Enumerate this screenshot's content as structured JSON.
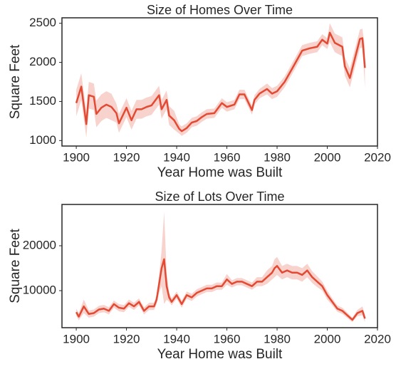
{
  "chart_data": [
    {
      "type": "line",
      "title": "Size of Homes Over Time",
      "xlabel": "Year Home was Built",
      "ylabel": "Square Feet",
      "x": [
        1900,
        1902,
        1904,
        1905,
        1907,
        1908,
        1910,
        1912,
        1914,
        1916,
        1917,
        1920,
        1922,
        1924,
        1926,
        1928,
        1930,
        1933,
        1934,
        1936,
        1937,
        1939,
        1941,
        1942,
        1944,
        1946,
        1948,
        1950,
        1952,
        1955,
        1958,
        1960,
        1963,
        1965,
        1967,
        1970,
        1971,
        1973,
        1976,
        1978,
        1980,
        1983,
        1986,
        1990,
        1993,
        1996,
        1998,
        2000,
        2001,
        2003,
        2006,
        2007,
        2009,
        2011,
        2013,
        2014,
        2015
      ],
      "series": [
        {
          "color": "#e24a33",
          "values": [
            1480,
            1690,
            1210,
            1580,
            1560,
            1340,
            1420,
            1460,
            1430,
            1350,
            1220,
            1420,
            1260,
            1400,
            1400,
            1430,
            1450,
            1580,
            1400,
            1520,
            1320,
            1260,
            1150,
            1120,
            1160,
            1230,
            1250,
            1300,
            1340,
            1350,
            1480,
            1430,
            1460,
            1590,
            1590,
            1390,
            1520,
            1600,
            1660,
            1600,
            1630,
            1750,
            1920,
            2150,
            2180,
            2200,
            2290,
            2240,
            2380,
            2250,
            2200,
            1950,
            1800,
            2050,
            2300,
            2310,
            1930
          ],
          "lower": [
            1310,
            1520,
            1040,
            1410,
            1390,
            1170,
            1250,
            1290,
            1260,
            1230,
            1100,
            1300,
            1140,
            1280,
            1280,
            1310,
            1330,
            1460,
            1280,
            1400,
            1200,
            1140,
            1090,
            1060,
            1100,
            1170,
            1190,
            1240,
            1280,
            1290,
            1420,
            1370,
            1400,
            1530,
            1530,
            1330,
            1460,
            1540,
            1590,
            1530,
            1560,
            1680,
            1850,
            2080,
            2110,
            2130,
            2220,
            2170,
            2260,
            2130,
            2080,
            1830,
            1680,
            1930,
            2180,
            2190,
            1680
          ],
          "upper": [
            1650,
            1860,
            1380,
            1750,
            1730,
            1510,
            1590,
            1630,
            1600,
            1470,
            1340,
            1540,
            1380,
            1520,
            1520,
            1550,
            1570,
            1700,
            1520,
            1640,
            1440,
            1380,
            1210,
            1180,
            1220,
            1290,
            1310,
            1360,
            1400,
            1410,
            1540,
            1490,
            1520,
            1650,
            1650,
            1450,
            1580,
            1660,
            1730,
            1670,
            1700,
            1820,
            1990,
            2220,
            2250,
            2270,
            2360,
            2310,
            2500,
            2370,
            2320,
            2070,
            1920,
            2170,
            2420,
            2430,
            2180
          ]
        }
      ],
      "xlim": [
        1894.3,
        2020
      ],
      "ylim": [
        930,
        2570
      ],
      "xticks": [
        1900,
        1920,
        1940,
        1960,
        1980,
        2000,
        2020
      ],
      "yticks": [
        1000,
        1500,
        2000,
        2500
      ]
    },
    {
      "type": "line",
      "title": "Size of Lots Over Time",
      "xlabel": "Year Home was Built",
      "ylabel": "Square Feet",
      "x": [
        1900,
        1901,
        1903,
        1905,
        1907,
        1909,
        1911,
        1913,
        1915,
        1917,
        1919,
        1921,
        1923,
        1925,
        1927,
        1929,
        1931,
        1932,
        1933,
        1934,
        1935,
        1936,
        1937,
        1938,
        1940,
        1942,
        1944,
        1946,
        1948,
        1950,
        1952,
        1954,
        1956,
        1958,
        1960,
        1962,
        1964,
        1966,
        1968,
        1970,
        1972,
        1974,
        1976,
        1978,
        1979,
        1980,
        1982,
        1984,
        1986,
        1988,
        1990,
        1992,
        1994,
        1996,
        1998,
        2000,
        2002,
        2004,
        2006,
        2008,
        2010,
        2012,
        2014,
        2015
      ],
      "series": [
        {
          "color": "#e24a33",
          "values": [
            5200,
            4200,
            6500,
            4800,
            5000,
            5800,
            6000,
            5500,
            7000,
            6200,
            6000,
            7200,
            6500,
            7500,
            5500,
            6500,
            6500,
            8000,
            11500,
            15000,
            17000,
            11000,
            8500,
            7500,
            9000,
            7000,
            9000,
            8500,
            9500,
            10000,
            10500,
            10500,
            11000,
            11000,
            12500,
            11500,
            12000,
            12000,
            11500,
            11000,
            12000,
            12000,
            13000,
            14000,
            15000,
            15500,
            14000,
            14500,
            14000,
            14000,
            13500,
            14500,
            13000,
            12000,
            11000,
            9000,
            7500,
            6000,
            5500,
            4500,
            3500,
            5000,
            5500,
            3800
          ],
          "lower": [
            4400,
            3400,
            5000,
            4000,
            4200,
            5000,
            5200,
            4700,
            6200,
            5400,
            5200,
            6400,
            5700,
            6700,
            4700,
            5700,
            5700,
            7000,
            9500,
            11000,
            7000,
            8000,
            7500,
            6700,
            8200,
            6200,
            8200,
            7700,
            8700,
            9200,
            9700,
            9700,
            10200,
            10200,
            11300,
            10700,
            11200,
            11200,
            10700,
            10200,
            11000,
            11000,
            11500,
            12500,
            13000,
            13500,
            12500,
            13000,
            12500,
            12500,
            12000,
            13000,
            11700,
            10800,
            10000,
            8000,
            6700,
            5300,
            4800,
            3900,
            3000,
            4300,
            4500,
            3000
          ],
          "upper": [
            6000,
            5000,
            8000,
            5600,
            5800,
            6600,
            6800,
            6300,
            7800,
            7000,
            6800,
            8000,
            7300,
            8300,
            6300,
            7300,
            7300,
            9000,
            13500,
            19000,
            27500,
            14000,
            9500,
            8300,
            9800,
            7800,
            9800,
            9300,
            10300,
            10800,
            11300,
            11300,
            11800,
            11800,
            13700,
            12300,
            12800,
            12800,
            12300,
            11800,
            13000,
            13000,
            14500,
            15500,
            17000,
            17500,
            15500,
            16000,
            15500,
            15500,
            15000,
            16000,
            14300,
            13200,
            12000,
            10000,
            8300,
            6700,
            6200,
            5100,
            4000,
            5700,
            6500,
            4600
          ]
        }
      ],
      "xlim": [
        1894.3,
        2020
      ],
      "ylim": [
        1750,
        29200
      ],
      "xticks": [
        1900,
        1920,
        1940,
        1960,
        1980,
        2000,
        2020
      ],
      "yticks": [
        10000,
        20000
      ]
    }
  ]
}
